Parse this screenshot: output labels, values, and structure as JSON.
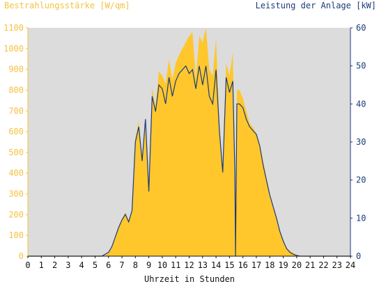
{
  "chart_data": {
    "type": "area",
    "title_left": "Bestrahlungsstärke [W/qm]",
    "title_right": "Leistung der Anlage [kW]",
    "xlabel": "Uhrzeit in Stunden",
    "x_ticks": [
      "0",
      "1",
      "2",
      "3",
      "4",
      "5",
      "6",
      "7",
      "8",
      "9",
      "10",
      "11",
      "12",
      "13",
      "14",
      "15",
      "16",
      "17",
      "18",
      "19",
      "20",
      "21",
      "22",
      "23",
      "24"
    ],
    "y_left_ticks": [
      "0",
      "100",
      "200",
      "300",
      "400",
      "500",
      "600",
      "700",
      "800",
      "900",
      "1000",
      "1100"
    ],
    "y_right_ticks": [
      "0",
      "10",
      "20",
      "30",
      "40",
      "50",
      "60"
    ],
    "xlim": [
      0,
      24
    ],
    "ylim_left": [
      0,
      1100
    ],
    "ylim_right": [
      0,
      60
    ],
    "grid": false,
    "colors": {
      "irradiance": "#ffc72c",
      "power": "#1a3a7a",
      "plot_bg": "#dcdcdc",
      "left_axis": "#f5c242",
      "right_axis": "#1a3a7a"
    },
    "series": [
      {
        "key": "irradiance",
        "axis": "left",
        "x": [
          0,
          5.5,
          5.75,
          6,
          6.25,
          6.5,
          6.75,
          7,
          7.25,
          7.5,
          7.75,
          8,
          8.25,
          8.5,
          8.75,
          9,
          9.25,
          9.5,
          9.75,
          10,
          10.25,
          10.5,
          10.75,
          11,
          11.25,
          11.5,
          11.75,
          12,
          12.25,
          12.5,
          12.75,
          13,
          13.25,
          13.5,
          13.75,
          14,
          14.25,
          14.5,
          14.75,
          15,
          15.25,
          15.4,
          15.45,
          15.55,
          15.75,
          16,
          16.25,
          16.5,
          16.75,
          17,
          17.25,
          17.5,
          17.75,
          18,
          18.25,
          18.5,
          18.75,
          19,
          19.25,
          19.5,
          19.75,
          20,
          20.25,
          20.5,
          24
        ],
        "values": [
          0,
          0,
          5,
          15,
          40,
          90,
          140,
          180,
          210,
          170,
          220,
          570,
          650,
          480,
          620,
          320,
          810,
          720,
          890,
          870,
          830,
          950,
          850,
          930,
          970,
          1000,
          1030,
          1060,
          1080,
          860,
          1060,
          1030,
          1100,
          900,
          870,
          1050,
          640,
          420,
          930,
          870,
          980,
          420,
          120,
          800,
          800,
          760,
          700,
          640,
          620,
          590,
          540,
          460,
          380,
          300,
          240,
          190,
          120,
          70,
          40,
          25,
          15,
          5,
          2,
          0,
          0
        ]
      },
      {
        "key": "power",
        "axis": "right",
        "x": [
          0,
          5.5,
          5.75,
          6,
          6.25,
          6.5,
          6.75,
          7,
          7.25,
          7.5,
          7.75,
          8,
          8.25,
          8.5,
          8.75,
          9,
          9.25,
          9.5,
          9.75,
          10,
          10.25,
          10.5,
          10.75,
          11,
          11.25,
          11.5,
          11.75,
          12,
          12.25,
          12.5,
          12.75,
          13,
          13.25,
          13.5,
          13.75,
          14,
          14.25,
          14.5,
          14.75,
          15,
          15.25,
          15.4,
          15.45,
          15.55,
          15.75,
          16,
          16.25,
          16.5,
          16.75,
          17,
          17.25,
          17.5,
          17.75,
          18,
          18.25,
          18.5,
          18.75,
          19,
          19.25,
          19.5,
          19.75,
          20,
          20.25,
          20.5,
          24
        ],
        "values": [
          0,
          0,
          0.5,
          1,
          2.5,
          5,
          7.5,
          9.5,
          11,
          9,
          12,
          30,
          34,
          25,
          36,
          17,
          42,
          38,
          45,
          44,
          40,
          47,
          42,
          46,
          48,
          49,
          50,
          48,
          49,
          44,
          50,
          45,
          50,
          42,
          40,
          49,
          33,
          22,
          47,
          43,
          46,
          22,
          0,
          40,
          40,
          39,
          36,
          34,
          33,
          32,
          29,
          24,
          20,
          16,
          13,
          10,
          6.5,
          4,
          2,
          1,
          0.5,
          0.2,
          0,
          0,
          0
        ]
      }
    ]
  }
}
